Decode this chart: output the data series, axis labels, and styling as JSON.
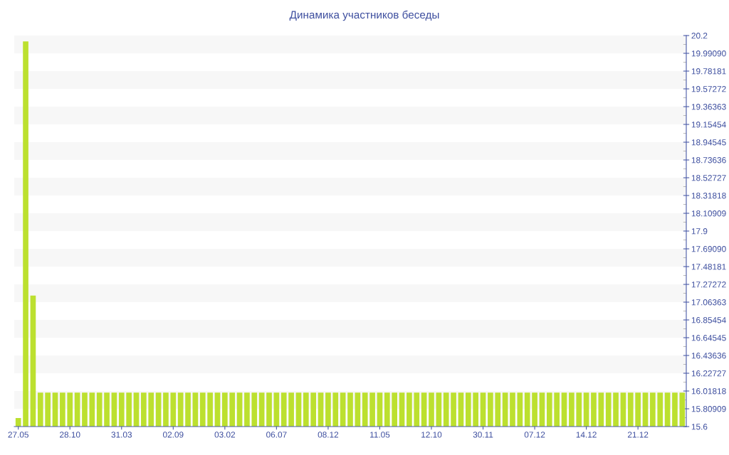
{
  "chart_data": {
    "type": "bar",
    "title": "Динамика участников беседы",
    "categories": [
      "27.05",
      null,
      null,
      null,
      null,
      null,
      null,
      "28.10",
      null,
      null,
      null,
      null,
      null,
      null,
      "31.03",
      null,
      null,
      null,
      null,
      null,
      null,
      "02.09",
      null,
      null,
      null,
      null,
      null,
      null,
      "03.02",
      null,
      null,
      null,
      null,
      null,
      null,
      "06.07",
      null,
      null,
      null,
      null,
      null,
      null,
      "08.12",
      null,
      null,
      null,
      null,
      null,
      null,
      "11.05",
      null,
      null,
      null,
      null,
      null,
      null,
      "12.10",
      null,
      null,
      null,
      null,
      null,
      null,
      "30.11",
      null,
      null,
      null,
      null,
      null,
      null,
      "07.12",
      null,
      null,
      null,
      null,
      null,
      null,
      "14.12",
      null,
      null,
      null,
      null,
      null,
      null,
      "21.12",
      null,
      null,
      null,
      null,
      null,
      null
    ],
    "values": [
      15.7,
      20.13,
      17.14,
      16,
      16,
      16,
      16,
      16,
      16,
      16,
      16,
      16,
      16,
      16,
      16,
      16,
      16,
      16,
      16,
      16,
      16,
      16,
      16,
      16,
      16,
      16,
      16,
      16,
      16,
      16,
      16,
      16,
      16,
      16,
      16,
      16,
      16,
      16,
      16,
      16,
      16,
      16,
      16,
      16,
      16,
      16,
      16,
      16,
      16,
      16,
      16,
      16,
      16,
      16,
      16,
      16,
      16,
      16,
      16,
      16,
      16,
      16,
      16,
      16,
      16,
      16,
      16,
      16,
      16,
      16,
      16,
      16,
      16,
      16,
      16,
      16,
      16,
      16,
      16,
      16,
      16,
      16,
      16,
      16,
      16,
      16,
      16,
      16,
      16,
      16,
      16
    ],
    "color": "#bce02f",
    "ylim": [
      15.6,
      20.2
    ],
    "yticks": [
      15.6,
      15.80909,
      16.01818,
      16.22727,
      16.43636,
      16.64545,
      16.85454,
      17.06363,
      17.27272,
      17.48181,
      {
        "value": 17.6909,
        "label": "17.69090"
      },
      17.9,
      18.10909,
      18.31818,
      18.52727,
      18.73636,
      18.94545,
      19.15454,
      19.36363,
      19.57272,
      19.78181,
      {
        "value": 19.9909,
        "label": "19.99090"
      },
      20.2
    ],
    "bands": [
      {
        "axis": "y",
        "from": 19.9909,
        "to": 20.2,
        "color": "#f7f7f7"
      },
      {
        "axis": "y",
        "from": 19.57272,
        "to": 19.78181,
        "color": "#f7f7f7"
      },
      {
        "axis": "y",
        "from": 19.15454,
        "to": 19.36363,
        "color": "#f7f7f7"
      },
      {
        "axis": "y",
        "from": 18.73636,
        "to": 18.94545,
        "color": "#f7f7f7"
      },
      {
        "axis": "y",
        "from": 18.31818,
        "to": 18.52727,
        "color": "#f7f7f7"
      },
      {
        "axis": "y",
        "from": 17.9,
        "to": 18.10909,
        "color": "#f7f7f7"
      },
      {
        "axis": "y",
        "from": 17.48181,
        "to": 17.6909,
        "color": "#f7f7f7"
      },
      {
        "axis": "y",
        "from": 17.06363,
        "to": 17.27272,
        "color": "#f7f7f7"
      },
      {
        "axis": "y",
        "from": 16.64545,
        "to": 16.85454,
        "color": "#f7f7f7"
      },
      {
        "axis": "y",
        "from": 16.22727,
        "to": 16.43636,
        "color": "#f7f7f7"
      },
      {
        "axis": "y",
        "from": 15.80909,
        "to": 16.01818,
        "color": "#f7f7f7"
      }
    ]
  }
}
